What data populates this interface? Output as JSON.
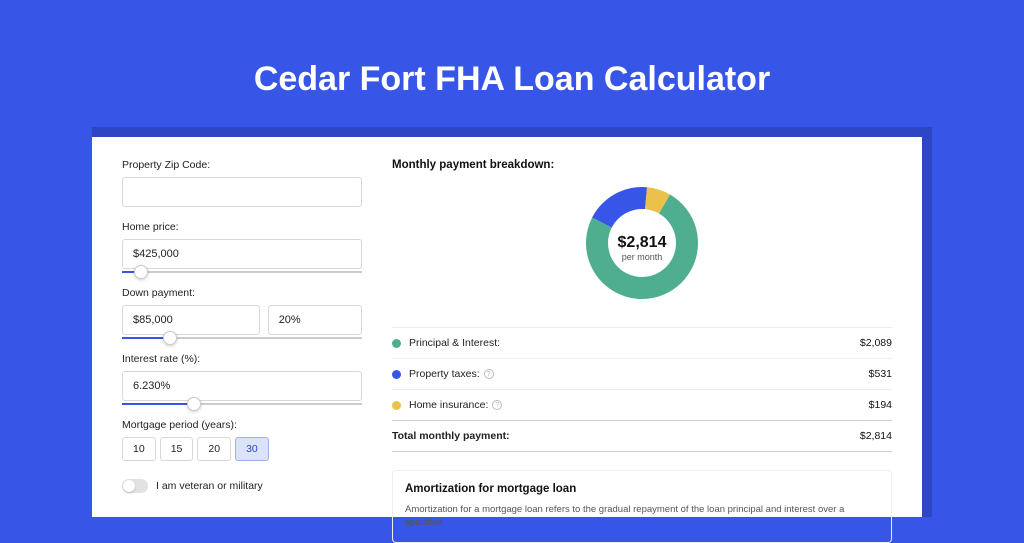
{
  "title": "Cedar Fort FHA Loan Calculator",
  "colors": {
    "page_bg": "#3755e6",
    "shadow_bg": "#2d47c4",
    "card_bg": "#ffffff",
    "accent": "#3755e6"
  },
  "form": {
    "zip": {
      "label": "Property Zip Code:",
      "value": ""
    },
    "home_price": {
      "label": "Home price:",
      "value": "$425,000",
      "slider_pct": 8
    },
    "down_payment": {
      "label": "Down payment:",
      "value": "$85,000",
      "pct_value": "20%",
      "slider_pct": 20
    },
    "interest": {
      "label": "Interest rate (%):",
      "value": "6.230%",
      "slider_pct": 30
    },
    "period": {
      "label": "Mortgage period (years):",
      "options": [
        "10",
        "15",
        "20",
        "30"
      ],
      "selected": "30"
    },
    "veteran": {
      "label": "I am veteran or military",
      "checked": false
    }
  },
  "breakdown": {
    "title": "Monthly payment breakdown:",
    "center_amount": "$2,814",
    "center_sub": "per month",
    "donut": {
      "size": 120,
      "inner_radius": 34,
      "outer_radius": 56,
      "background": "#ffffff",
      "segments": [
        {
          "key": "principal_interest",
          "value": 2089,
          "pct": 74.2,
          "color": "#4fae8f"
        },
        {
          "key": "property_taxes",
          "value": 531,
          "pct": 18.9,
          "color": "#3755e6"
        },
        {
          "key": "home_insurance",
          "value": 194,
          "pct": 6.9,
          "color": "#eac14b"
        }
      ],
      "start_angle_deg": -60
    },
    "rows": [
      {
        "label": "Principal & Interest:",
        "value": "$2,089",
        "color": "#4fae8f",
        "info": false
      },
      {
        "label": "Property taxes:",
        "value": "$531",
        "color": "#3755e6",
        "info": true
      },
      {
        "label": "Home insurance:",
        "value": "$194",
        "color": "#eac14b",
        "info": true
      }
    ],
    "total": {
      "label": "Total monthly payment:",
      "value": "$2,814"
    }
  },
  "amort": {
    "title": "Amortization for mortgage loan",
    "text": "Amortization for a mortgage loan refers to the gradual repayment of the loan principal and interest over a specified"
  }
}
